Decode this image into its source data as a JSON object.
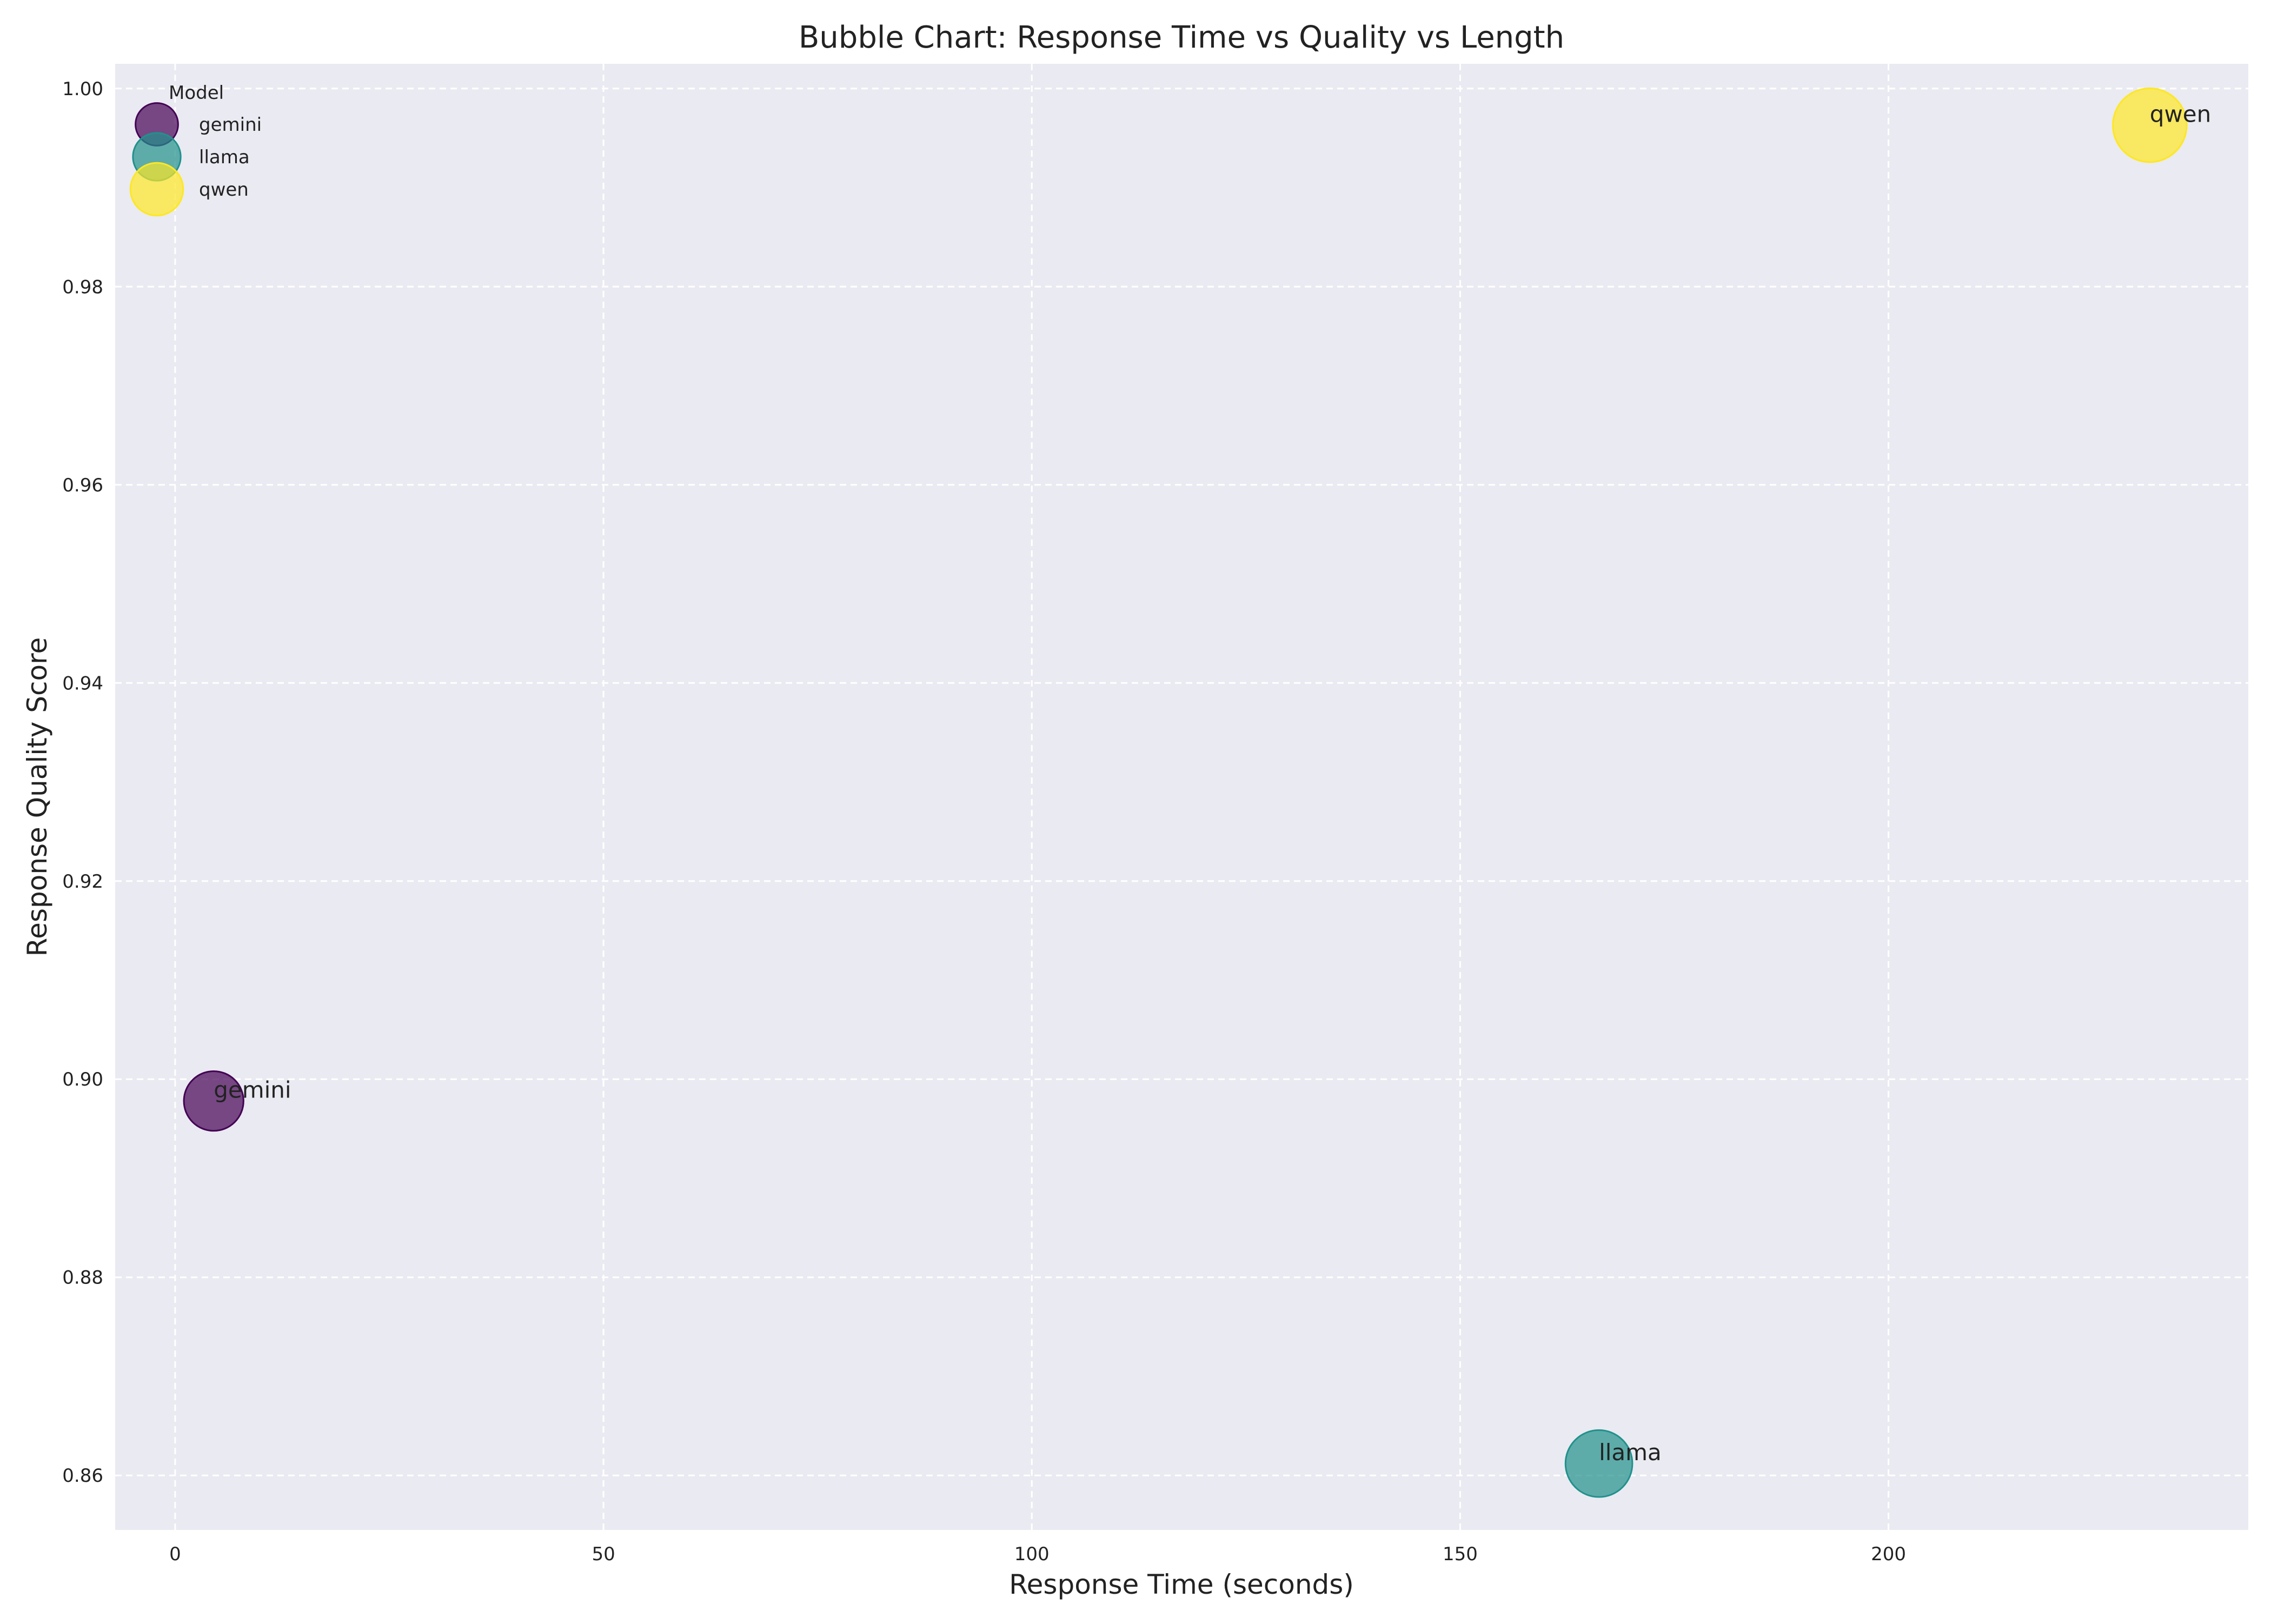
{
  "chart_data": {
    "type": "scatter",
    "title": "Bubble Chart: Response Time vs Quality vs Length",
    "xlabel": "Response Time (seconds)",
    "ylabel": "Response Quality Score",
    "xlim": [
      -7,
      242
    ],
    "ylim": [
      0.8545,
      1.0025
    ],
    "xticks": [
      0,
      50,
      100,
      150,
      200
    ],
    "yticks": [
      0.86,
      0.88,
      0.9,
      0.92,
      0.94,
      0.96,
      0.98,
      1.0
    ],
    "xtick_labels": [
      "0",
      "50",
      "100",
      "150",
      "200"
    ],
    "ytick_labels": [
      "0.86",
      "0.88",
      "0.90",
      "0.92",
      "0.94",
      "0.96",
      "0.98",
      "1.00"
    ],
    "grid": true,
    "legend": {
      "title": "Model",
      "position": "top-left"
    },
    "series": [
      {
        "name": "gemini",
        "x": 4.5,
        "y": 0.8978,
        "size": 0.62,
        "color": "#440154",
        "label": "gemini"
      },
      {
        "name": "llama",
        "x": 166.2,
        "y": 0.8612,
        "size": 0.78,
        "color": "#21918c",
        "label": "llama"
      },
      {
        "name": "qwen",
        "x": 230.5,
        "y": 0.9963,
        "size": 0.95,
        "color": "#fde725",
        "label": "qwen"
      }
    ],
    "colors": {
      "background": "#eaeaf2",
      "grid": "#ffffff",
      "text": "#222222"
    }
  }
}
